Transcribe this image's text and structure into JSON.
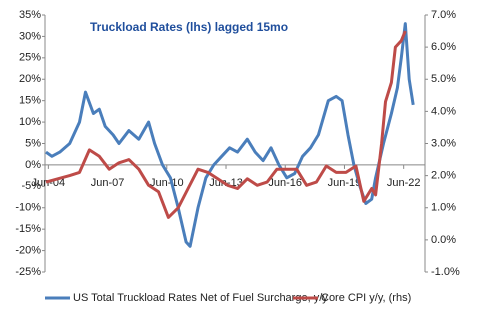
{
  "chart_data": {
    "type": "line",
    "title": "Truckload  Rates (lhs) lagged  15mo",
    "xlim": [
      2004.25,
      2023.5
    ],
    "xticks": [
      {
        "value": 2004.42,
        "label": "Jun-04"
      },
      {
        "value": 2007.42,
        "label": "Jun-07"
      },
      {
        "value": 2010.42,
        "label": "Jun-10"
      },
      {
        "value": 2013.42,
        "label": "Jun-13"
      },
      {
        "value": 2016.42,
        "label": "Jun-16"
      },
      {
        "value": 2019.42,
        "label": "Jun-19"
      },
      {
        "value": 2022.42,
        "label": "Jun-22"
      }
    ],
    "ylim": [
      -25,
      35
    ],
    "yticks": [
      {
        "value": -25,
        "label": "-25%"
      },
      {
        "value": -20,
        "label": "-20%"
      },
      {
        "value": -15,
        "label": "-15%"
      },
      {
        "value": -10,
        "label": "-10%"
      },
      {
        "value": -5,
        "label": "-5%"
      },
      {
        "value": 0,
        "label": "0%"
      },
      {
        "value": 5,
        "label": "5%"
      },
      {
        "value": 10,
        "label": "10%"
      },
      {
        "value": 15,
        "label": "15%"
      },
      {
        "value": 20,
        "label": "20%"
      },
      {
        "value": 25,
        "label": "25%"
      },
      {
        "value": 30,
        "label": "30%"
      },
      {
        "value": 35,
        "label": "35%"
      }
    ],
    "y2lim": [
      -1,
      7
    ],
    "y2ticks": [
      {
        "value": -1,
        "label": "-1.0%"
      },
      {
        "value": 0,
        "label": "0.0%"
      },
      {
        "value": 1,
        "label": "1.0%"
      },
      {
        "value": 2,
        "label": "2.0%"
      },
      {
        "value": 3,
        "label": "3.0%"
      },
      {
        "value": 4,
        "label": "4.0%"
      },
      {
        "value": 5,
        "label": "5.0%"
      },
      {
        "value": 6,
        "label": "6.0%"
      },
      {
        "value": 7,
        "label": "7.0%"
      }
    ],
    "series": [
      {
        "name": "US Total Truckload Rates Net of Fuel Surcharge, y/y",
        "color": "#4a7ebb",
        "x": [
          2004.3,
          2004.6,
          2005.0,
          2005.5,
          2006.0,
          2006.3,
          2006.7,
          2007.0,
          2007.3,
          2007.7,
          2008.0,
          2008.5,
          2009.0,
          2009.5,
          2009.8,
          2010.2,
          2010.6,
          2011.0,
          2011.4,
          2011.6,
          2012.0,
          2012.4,
          2012.8,
          2013.2,
          2013.6,
          2014.0,
          2014.5,
          2014.9,
          2015.3,
          2015.7,
          2016.1,
          2016.5,
          2016.9,
          2017.3,
          2017.7,
          2018.1,
          2018.6,
          2019.0,
          2019.3,
          2019.6,
          2019.9,
          2020.2,
          2020.5,
          2020.8,
          2021.0,
          2021.4,
          2021.8,
          2022.1,
          2022.3,
          2022.5,
          2022.7,
          2022.9
        ],
        "values": [
          3,
          2,
          3,
          5,
          10,
          17,
          12,
          13,
          9,
          7,
          5,
          8,
          6,
          10,
          5,
          0,
          -3,
          -10,
          -18,
          -19,
          -10,
          -3,
          0,
          2,
          4,
          3,
          6,
          3,
          1,
          4,
          0,
          -3,
          -2,
          2,
          4,
          7,
          15,
          16,
          15,
          7,
          0,
          -5,
          -9,
          -8,
          -3,
          5,
          12,
          18,
          25,
          33,
          20,
          14
        ]
      },
      {
        "name": "Core CPI y/y, (rhs)",
        "color": "#be4b48",
        "axis": "y2",
        "x": [
          2004.3,
          2005.5,
          2006.0,
          2006.5,
          2007.0,
          2007.5,
          2008.0,
          2008.5,
          2009.0,
          2009.5,
          2010.0,
          2010.5,
          2011.0,
          2011.5,
          2012.0,
          2012.5,
          2013.0,
          2013.5,
          2014.0,
          2014.5,
          2015.0,
          2015.5,
          2016.0,
          2016.5,
          2017.0,
          2017.5,
          2018.0,
          2018.5,
          2019.0,
          2019.5,
          2020.0,
          2020.4,
          2020.8,
          2021.0,
          2021.3,
          2021.5,
          2021.8,
          2022.0,
          2022.3,
          2022.5
        ],
        "values": [
          1.8,
          2.0,
          2.1,
          2.8,
          2.6,
          2.2,
          2.4,
          2.5,
          2.2,
          1.7,
          1.5,
          0.7,
          1.0,
          1.6,
          2.2,
          2.1,
          1.9,
          1.7,
          1.6,
          1.9,
          1.7,
          1.8,
          2.2,
          2.2,
          2.2,
          1.7,
          1.8,
          2.3,
          2.1,
          2.1,
          2.3,
          1.2,
          1.6,
          1.4,
          3.0,
          4.3,
          4.9,
          6.0,
          6.2,
          6.5
        ]
      }
    ]
  }
}
